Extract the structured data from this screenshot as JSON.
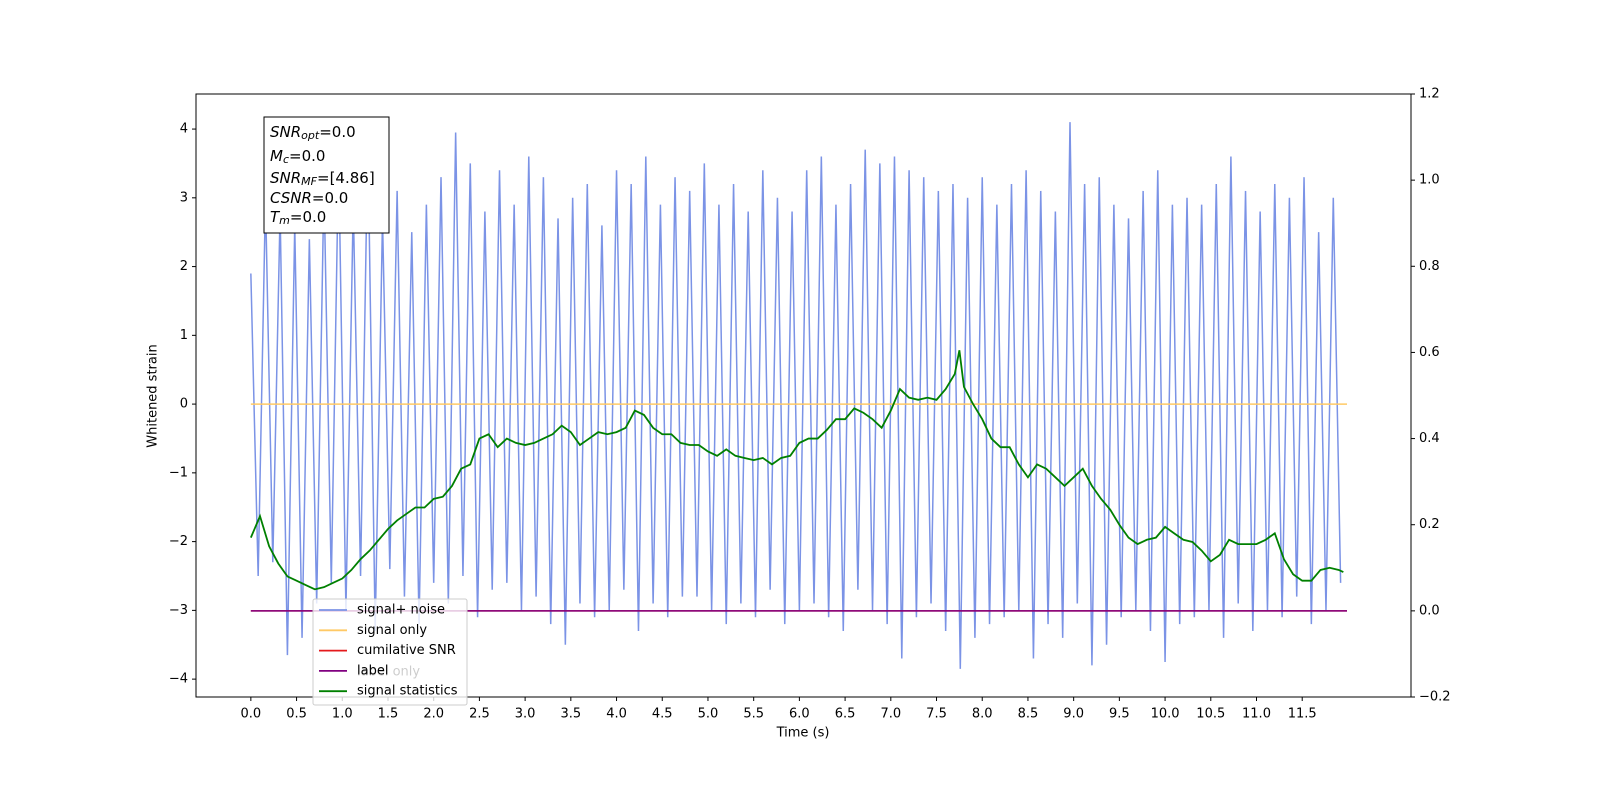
{
  "chart_data": {
    "type": "line",
    "xlabel": "Time (s)",
    "ylabel": "Whitened strain",
    "xlim": [
      -0.6,
      12.69
    ],
    "ylim": [
      -4.26,
      4.51
    ],
    "y2lim": [
      -0.2,
      1.2
    ],
    "xticks": [
      {
        "value": 0,
        "label": "0.0"
      },
      0.5,
      {
        "value": 1,
        "label": "1.0"
      },
      1.5,
      {
        "value": 2,
        "label": "2.0"
      },
      2.5,
      {
        "value": 3,
        "label": "3.0"
      },
      3.5,
      {
        "value": 4,
        "label": "4.0"
      },
      4.5,
      {
        "value": 5,
        "label": "5.0"
      },
      5.5,
      {
        "value": 6,
        "label": "6.0"
      },
      6.5,
      {
        "value": 7,
        "label": "7.0"
      },
      7.5,
      {
        "value": 8,
        "label": "8.0"
      },
      8.5,
      {
        "value": 9,
        "label": "9.0"
      },
      9.5,
      {
        "value": 10,
        "label": "10.0"
      },
      10.5,
      {
        "value": 11,
        "label": "11.0"
      },
      11.5
    ],
    "yticks": [
      {
        "value": -4,
        "label": "−4"
      },
      {
        "value": -3,
        "label": "−3"
      },
      {
        "value": -2,
        "label": "−2"
      },
      {
        "value": -1,
        "label": "−1"
      },
      0,
      1,
      2,
      3,
      4
    ],
    "y2ticks": [
      {
        "value": -0.2,
        "label": "−0.2"
      },
      {
        "value": 0,
        "label": "0.0"
      },
      0.2,
      0.4,
      0.6,
      0.8,
      {
        "value": 1,
        "label": "1.0"
      },
      1.2
    ],
    "legend": "lower left",
    "legend_ghost_texts": [
      "label only"
    ],
    "stats_box": [
      {
        "name": "SNR",
        "sub": "opt",
        "text": "=0.0"
      },
      {
        "name": "M",
        "sub": "c",
        "text": "=0.0"
      },
      {
        "name": "SNR",
        "sub": "MF",
        "text": "=[4.86]"
      },
      {
        "name": "CSNR",
        "text": "=0.0"
      },
      {
        "name": "T",
        "sub": "m",
        "text": "=0.0"
      }
    ],
    "series": [
      {
        "name": "signal+ noise",
        "color": "#7b93e6",
        "axis": "y",
        "x": [
          0,
          0.08,
          0.16,
          0.24,
          0.32,
          0.4,
          0.48,
          0.56,
          0.64,
          0.72,
          0.8,
          0.88,
          0.96,
          1.04,
          1.12,
          1.2,
          1.28,
          1.36,
          1.44,
          1.52,
          1.6,
          1.68,
          1.76,
          1.84,
          1.92,
          2,
          2.08,
          2.16,
          2.24,
          2.32,
          2.4,
          2.48,
          2.56,
          2.64,
          2.72,
          2.8,
          2.88,
          2.96,
          3.04,
          3.12,
          3.2,
          3.28,
          3.36,
          3.44,
          3.52,
          3.6,
          3.68,
          3.76,
          3.84,
          3.92,
          4,
          4.08,
          4.16,
          4.24,
          4.32,
          4.4,
          4.48,
          4.56,
          4.64,
          4.72,
          4.8,
          4.88,
          4.96,
          5.04,
          5.12,
          5.2,
          5.28,
          5.36,
          5.44,
          5.52,
          5.6,
          5.68,
          5.76,
          5.84,
          5.92,
          6,
          6.08,
          6.16,
          6.24,
          6.32,
          6.4,
          6.48,
          6.56,
          6.64,
          6.72,
          6.8,
          6.88,
          6.96,
          7.04,
          7.12,
          7.2,
          7.28,
          7.36,
          7.44,
          7.52,
          7.6,
          7.68,
          7.76,
          7.84,
          7.92,
          8,
          8.08,
          8.16,
          8.24,
          8.32,
          8.4,
          8.48,
          8.56,
          8.64,
          8.72,
          8.8,
          8.88,
          8.96,
          9.04,
          9.12,
          9.2,
          9.28,
          9.36,
          9.44,
          9.52,
          9.6,
          9.68,
          9.76,
          9.84,
          9.92,
          10,
          10.08,
          10.16,
          10.24,
          10.32,
          10.4,
          10.48,
          10.56,
          10.64,
          10.72,
          10.8,
          10.88,
          10.96,
          11.04,
          11.12,
          11.2,
          11.28,
          11.36,
          11.44,
          11.52,
          11.6,
          11.68,
          11.76,
          11.84,
          11.92
        ],
        "values": [
          1.9,
          -2.5,
          3.0,
          -2.3,
          2.8,
          -3.65,
          2.6,
          -3.4,
          2.4,
          -2.9,
          3.2,
          -2.6,
          3.6,
          -3.0,
          2.9,
          -2.5,
          3.9,
          -3.3,
          2.7,
          -2.4,
          3.1,
          -2.8,
          2.5,
          -3.2,
          2.9,
          -2.6,
          3.3,
          -2.9,
          3.95,
          -2.5,
          3.5,
          -3.1,
          2.8,
          -2.7,
          3.4,
          -2.6,
          2.9,
          -3.0,
          3.6,
          -2.8,
          3.3,
          -3.2,
          2.7,
          -3.5,
          3.0,
          -2.9,
          3.2,
          -3.1,
          2.6,
          -3.0,
          3.4,
          -2.7,
          3.2,
          -3.3,
          3.6,
          -2.9,
          2.9,
          -3.1,
          3.3,
          -2.8,
          3.1,
          -2.8,
          3.5,
          -3.0,
          2.9,
          -3.2,
          3.2,
          -2.9,
          2.8,
          -3.1,
          3.4,
          -2.7,
          3.0,
          -3.2,
          2.8,
          -3.0,
          3.4,
          -2.9,
          3.6,
          -3.1,
          2.9,
          -3.3,
          3.2,
          -2.7,
          3.7,
          -3.0,
          3.5,
          -3.2,
          3.6,
          -3.7,
          3.4,
          -3.1,
          3.3,
          -2.9,
          3.1,
          -3.3,
          3.2,
          -3.85,
          3.0,
          -3.4,
          3.3,
          -3.2,
          2.9,
          -3.1,
          3.2,
          -3.0,
          3.4,
          -3.7,
          3.1,
          -3.2,
          2.8,
          -3.4,
          4.1,
          -2.9,
          3.2,
          -3.8,
          3.3,
          -3.5,
          2.9,
          -3.1,
          2.7,
          -3.0,
          3.1,
          -3.3,
          3.4,
          -3.75,
          2.9,
          -3.2,
          3.0,
          -3.1,
          2.9,
          -3.0,
          3.2,
          -3.4,
          3.6,
          -2.9,
          3.1,
          -3.3,
          2.8,
          -3.0,
          3.2,
          -3.1,
          3.0,
          -2.8,
          3.3,
          -3.2,
          2.5,
          -3.0,
          3.0,
          -2.6
        ]
      },
      {
        "name": "signal only",
        "color": "#ffc966",
        "axis": "y",
        "x": [
          0,
          11.99
        ],
        "values": [
          0,
          0
        ]
      },
      {
        "name": "cumilative SNR",
        "color": "#e41a1c",
        "axis": "y2",
        "x": [
          0,
          11.99
        ],
        "values": [
          0,
          0
        ]
      },
      {
        "name": "label",
        "color": "#800080",
        "axis": "y2",
        "x": [
          0,
          11.99
        ],
        "values": [
          0,
          0
        ]
      },
      {
        "name": "signal statistics",
        "color": "#008000",
        "axis": "y2",
        "x": [
          0,
          0.1,
          0.2,
          0.3,
          0.4,
          0.5,
          0.6,
          0.7,
          0.8,
          0.9,
          1,
          1.1,
          1.2,
          1.3,
          1.4,
          1.5,
          1.6,
          1.7,
          1.8,
          1.9,
          2,
          2.1,
          2.2,
          2.3,
          2.4,
          2.5,
          2.6,
          2.7,
          2.8,
          2.9,
          3,
          3.1,
          3.2,
          3.3,
          3.4,
          3.5,
          3.6,
          3.7,
          3.8,
          3.9,
          4,
          4.1,
          4.2,
          4.3,
          4.4,
          4.5,
          4.6,
          4.7,
          4.8,
          4.9,
          5,
          5.1,
          5.2,
          5.3,
          5.4,
          5.5,
          5.6,
          5.7,
          5.8,
          5.9,
          6,
          6.1,
          6.2,
          6.3,
          6.4,
          6.5,
          6.6,
          6.7,
          6.8,
          6.9,
          7,
          7.1,
          7.2,
          7.3,
          7.4,
          7.5,
          7.6,
          7.7,
          7.75,
          7.8,
          7.9,
          8,
          8.1,
          8.2,
          8.3,
          8.4,
          8.5,
          8.6,
          8.7,
          8.8,
          8.9,
          9,
          9.1,
          9.2,
          9.3,
          9.4,
          9.5,
          9.6,
          9.7,
          9.8,
          9.9,
          10,
          10.1,
          10.2,
          10.3,
          10.4,
          10.5,
          10.6,
          10.7,
          10.8,
          10.9,
          11,
          11.1,
          11.2,
          11.3,
          11.4,
          11.5,
          11.6,
          11.7,
          11.8,
          11.9,
          11.95
        ],
        "values": [
          0.17,
          0.22,
          0.15,
          0.11,
          0.08,
          0.07,
          0.06,
          0.05,
          0.055,
          0.065,
          0.075,
          0.095,
          0.12,
          0.14,
          0.165,
          0.19,
          0.21,
          0.225,
          0.24,
          0.24,
          0.26,
          0.265,
          0.29,
          0.33,
          0.34,
          0.4,
          0.41,
          0.38,
          0.4,
          0.39,
          0.385,
          0.39,
          0.4,
          0.41,
          0.43,
          0.415,
          0.385,
          0.4,
          0.415,
          0.41,
          0.415,
          0.425,
          0.465,
          0.455,
          0.425,
          0.41,
          0.41,
          0.39,
          0.385,
          0.385,
          0.37,
          0.36,
          0.375,
          0.36,
          0.355,
          0.35,
          0.355,
          0.34,
          0.355,
          0.36,
          0.39,
          0.4,
          0.4,
          0.42,
          0.445,
          0.445,
          0.47,
          0.46,
          0.445,
          0.425,
          0.465,
          0.515,
          0.495,
          0.49,
          0.495,
          0.49,
          0.515,
          0.55,
          0.605,
          0.52,
          0.48,
          0.445,
          0.4,
          0.38,
          0.38,
          0.34,
          0.31,
          0.34,
          0.33,
          0.31,
          0.29,
          0.31,
          0.33,
          0.29,
          0.26,
          0.235,
          0.2,
          0.17,
          0.155,
          0.165,
          0.17,
          0.195,
          0.18,
          0.165,
          0.16,
          0.14,
          0.115,
          0.13,
          0.165,
          0.155,
          0.155,
          0.155,
          0.165,
          0.18,
          0.12,
          0.085,
          0.07,
          0.07,
          0.095,
          0.1,
          0.095,
          0.09
        ]
      }
    ]
  }
}
